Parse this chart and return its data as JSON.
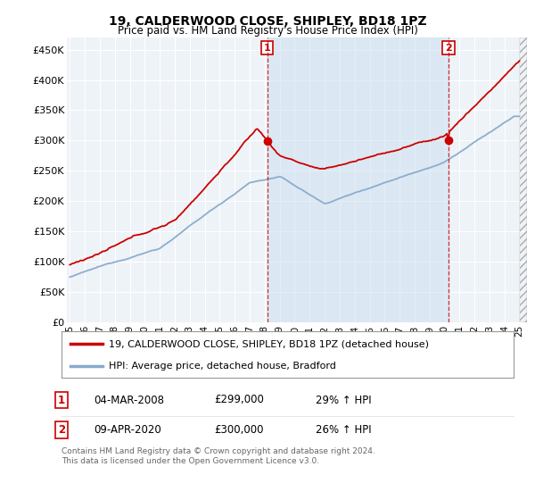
{
  "title": "19, CALDERWOOD CLOSE, SHIPLEY, BD18 1PZ",
  "subtitle": "Price paid vs. HM Land Registry's House Price Index (HPI)",
  "ylabel_ticks": [
    "£0",
    "£50K",
    "£100K",
    "£150K",
    "£200K",
    "£250K",
    "£300K",
    "£350K",
    "£400K",
    "£450K"
  ],
  "ytick_values": [
    0,
    50000,
    100000,
    150000,
    200000,
    250000,
    300000,
    350000,
    400000,
    450000
  ],
  "ylim": [
    0,
    470000
  ],
  "background_color": "#ffffff",
  "plot_bg_color": "#eef3f8",
  "grid_color": "#ffffff",
  "line1_color": "#cc0000",
  "line2_color": "#88aacc",
  "vline1_x": 2008.17,
  "vline2_x": 2020.27,
  "shade_color": "#ddeeff",
  "legend_line1": "19, CALDERWOOD CLOSE, SHIPLEY, BD18 1PZ (detached house)",
  "legend_line2": "HPI: Average price, detached house, Bradford",
  "footer": "Contains HM Land Registry data © Crown copyright and database right 2024.\nThis data is licensed under the Open Government Licence v3.0.",
  "xlim_start": 1994.8,
  "xlim_end": 2025.5,
  "hatch_start": 2025.0
}
